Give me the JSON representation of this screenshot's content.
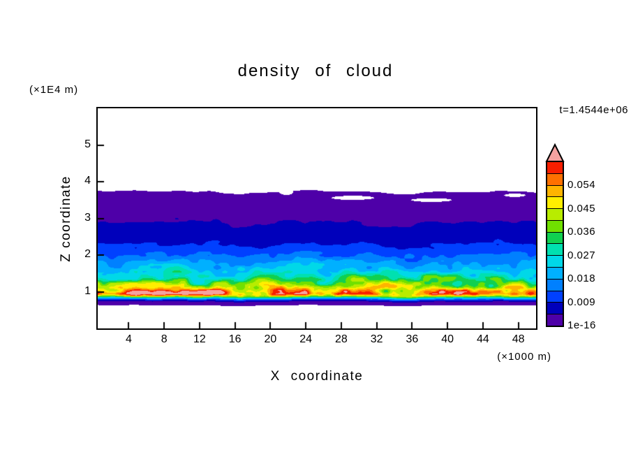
{
  "chart_data": {
    "type": "heatmap",
    "title": "density of cloud",
    "time_annotation": "t=1.4544e+06",
    "xlabel": "X coordinate",
    "x_unit": "(×1000 m)",
    "ylabel": "Z coordinate",
    "y_unit": "(×1E4 m)",
    "xlim": [
      0.5,
      50
    ],
    "ylim": [
      0,
      6
    ],
    "x_ticks": [
      4,
      8,
      12,
      16,
      20,
      24,
      28,
      32,
      36,
      40,
      44,
      48
    ],
    "y_ticks": [
      1,
      2,
      3,
      4,
      5
    ],
    "contour_levels": [
      1e-16,
      0.0045,
      0.009,
      0.0135,
      0.018,
      0.0225,
      0.027,
      0.0315,
      0.036,
      0.0405,
      0.045,
      0.0495,
      0.054,
      0.0585,
      0.063
    ],
    "palette": [
      "#4e00a8",
      "#0000bb",
      "#0040ff",
      "#0080ff",
      "#00b0ff",
      "#00d8e8",
      "#00e0b0",
      "#10d050",
      "#70e000",
      "#b8ec00",
      "#ffee00",
      "#ffb400",
      "#ff7000",
      "#f81e00"
    ],
    "overflow_color": "#f5a2a0",
    "background_color": "#ffffff",
    "colorbar_labels": [
      {
        "text": "0.054",
        "boundary": 12
      },
      {
        "text": "0.045",
        "boundary": 10
      },
      {
        "text": "0.036",
        "boundary": 8
      },
      {
        "text": "0.027",
        "boundary": 6
      },
      {
        "text": "0.018",
        "boundary": 4
      },
      {
        "text": "0.009",
        "boundary": 2
      },
      {
        "text": "1e-16",
        "boundary": 0
      }
    ],
    "density_profile": {
      "z": [
        0.62,
        0.68,
        0.72,
        0.76,
        0.8,
        0.84,
        0.88,
        0.93,
        1.0,
        1.08,
        1.18,
        1.3,
        1.45,
        1.6,
        1.78,
        1.95,
        2.1,
        2.3,
        2.55,
        2.9,
        3.2,
        3.45,
        3.62,
        3.7
      ],
      "value": [
        0,
        0.0008,
        0.004,
        0.009,
        0.018,
        0.032,
        0.046,
        0.056,
        0.052,
        0.046,
        0.04,
        0.034,
        0.028,
        0.0235,
        0.019,
        0.014,
        0.0115,
        0.0085,
        0.0062,
        0.0044,
        0.003,
        0.0018,
        0.0008,
        0
      ]
    },
    "noise_amplitude": {
      "z": [
        0.7,
        0.9,
        1.3,
        1.8,
        2.4,
        3.0,
        3.7
      ],
      "amp": [
        0.12,
        0.38,
        0.4,
        0.3,
        0.22,
        0.15,
        0.1
      ]
    },
    "displacement_waves": [
      [
        0.23,
        0.07
      ],
      [
        0.61,
        0.04
      ]
    ],
    "field_noise": [
      [
        0.42,
        5.0,
        0.6
      ],
      [
        1.1,
        9.5,
        0.4
      ]
    ],
    "white_holes": [
      {
        "x": 29.3,
        "z": 3.56,
        "rx": 2.4,
        "rz": 0.055
      },
      {
        "x": 38.2,
        "z": 3.5,
        "rx": 2.3,
        "rz": 0.05
      },
      {
        "x": 47.6,
        "z": 3.63,
        "rx": 1.2,
        "rz": 0.045
      },
      {
        "x": 21.8,
        "z": 3.72,
        "rx": 0.8,
        "rz": 0.08
      }
    ],
    "hot_spots": [
      {
        "x": 8.0,
        "z": 0.95,
        "rx": 5.0,
        "rz": 0.09,
        "amp": 0.012
      },
      {
        "x": 12.5,
        "z": 0.97,
        "rx": 2.0,
        "rz": 0.07,
        "amp": 0.008
      },
      {
        "x": 20.8,
        "z": 1.05,
        "rx": 1.0,
        "rz": 0.05,
        "amp": 0.006
      }
    ]
  }
}
